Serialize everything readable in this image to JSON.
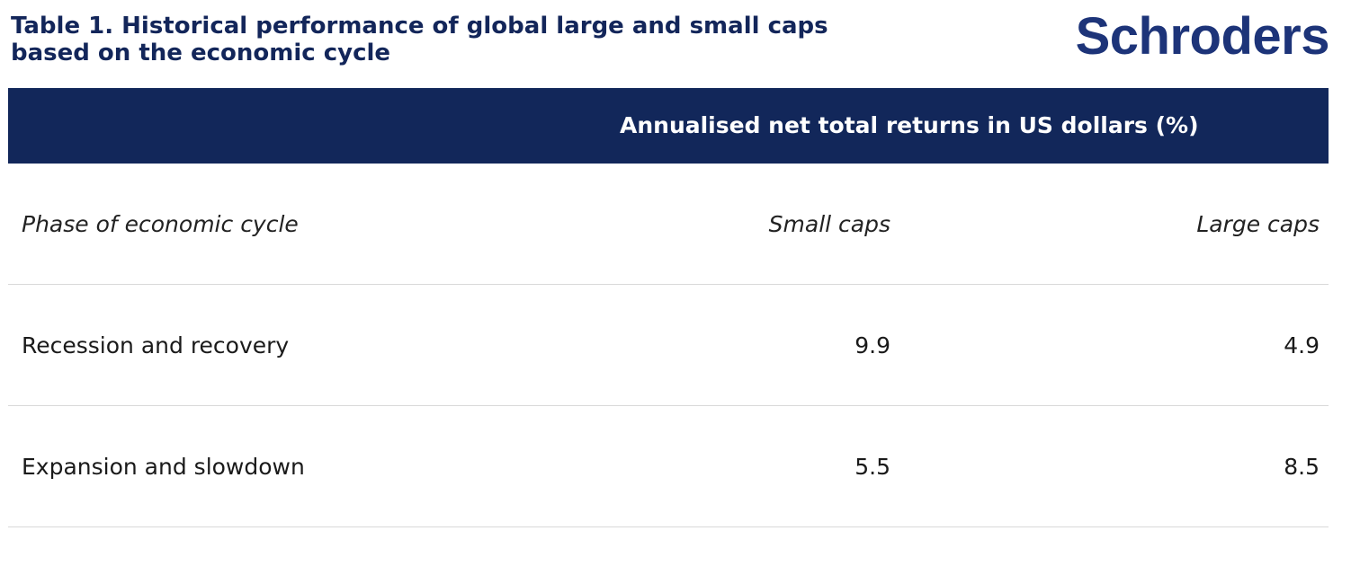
{
  "header": {
    "title": "Table 1. Historical performance of global large and small caps based on the economic cycle",
    "logo": "Schroders"
  },
  "table": {
    "banner": "Annualised net total returns in US dollars (%)",
    "columns": {
      "phase": "Phase of economic cycle",
      "small_caps": "Small caps",
      "large_caps": "Large caps"
    },
    "rows": [
      {
        "phase": "Recession and recovery",
        "small_caps": "9.9",
        "large_caps": "4.9"
      },
      {
        "phase": "Expansion and slowdown",
        "small_caps": "5.5",
        "large_caps": "8.5"
      }
    ]
  },
  "colors": {
    "navy": "#12275a",
    "brand": "#1d3479",
    "divider": "#d9d9d9"
  }
}
